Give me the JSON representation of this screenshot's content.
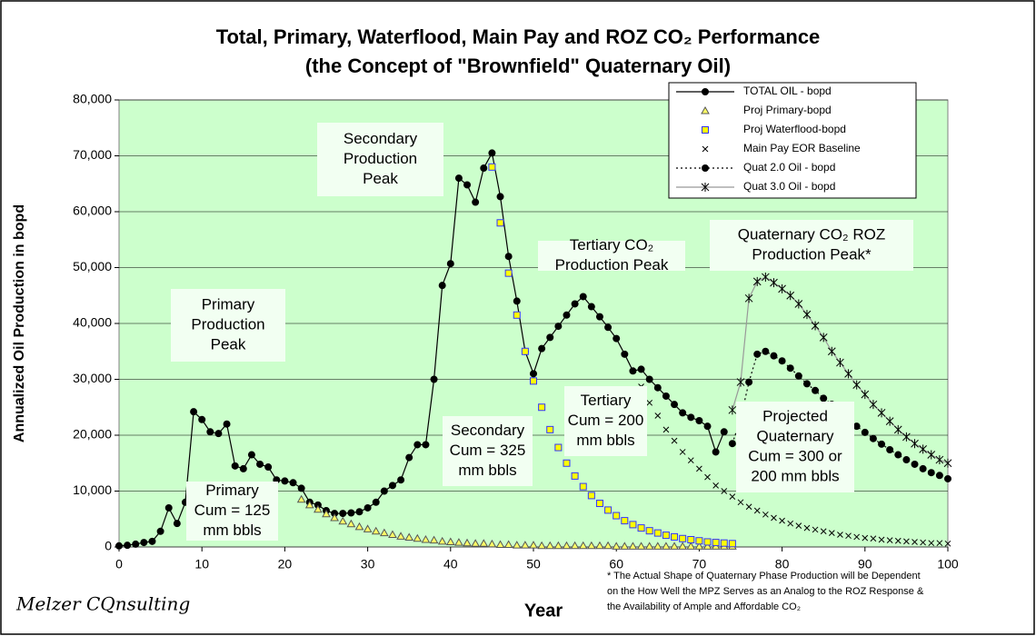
{
  "chart_data": {
    "type": "line",
    "title": "Total, Primary, Waterflood, Main Pay and ROZ CO₂ Performance",
    "subtitle": "(the Concept of \"Brownfield\" Quaternary Oil)",
    "x_label": "Year",
    "y_label": "Annualized Oil Production in bopd",
    "xlim": [
      0,
      100
    ],
    "ylim": [
      0,
      80000
    ],
    "xticks": [
      0,
      10,
      20,
      30,
      40,
      50,
      60,
      70,
      80,
      90,
      100
    ],
    "yticks": [
      0,
      {
        "value": 10000,
        "label": "10,000"
      },
      {
        "value": 20000,
        "label": "20,000"
      },
      {
        "value": 30000,
        "label": "30,000"
      },
      {
        "value": 40000,
        "label": "40,000"
      },
      {
        "value": 50000,
        "label": "50,000"
      },
      {
        "value": 60000,
        "label": "60,000"
      },
      {
        "value": 70000,
        "label": "70,000"
      },
      {
        "value": 80000,
        "label": "80,000"
      }
    ],
    "grid": true,
    "plot_background": "#ccffcc",
    "legend": "top-right",
    "series": [
      {
        "name": "TOTAL OIL - bopd",
        "color": "#000000",
        "marker": "circle",
        "marker_fill": "#000000",
        "line": "solid",
        "x": [
          0,
          1,
          2,
          3,
          4,
          5,
          6,
          7,
          8,
          9,
          10,
          11,
          12,
          13,
          14,
          15,
          16,
          17,
          18,
          19,
          20,
          21,
          22,
          23,
          24,
          25,
          26,
          27,
          28,
          29,
          30,
          31,
          32,
          33,
          34,
          35,
          36,
          37,
          38,
          39,
          40,
          41,
          42,
          43,
          44,
          45,
          46,
          47,
          48,
          49,
          50,
          51,
          52,
          53,
          54,
          55,
          56,
          57,
          58,
          59,
          60,
          61,
          62,
          63,
          64,
          65,
          66,
          67,
          68,
          69,
          70,
          71,
          72,
          73
        ],
        "values": [
          200,
          300,
          500,
          800,
          1000,
          2800,
          7000,
          4200,
          8000,
          24200,
          22800,
          20600,
          20300,
          22000,
          14500,
          14000,
          16500,
          14800,
          14300,
          12000,
          11800,
          11500,
          10500,
          8000,
          7500,
          6500,
          6000,
          6000,
          6100,
          6300,
          7000,
          8000,
          10000,
          11000,
          12000,
          16000,
          18300,
          18300,
          30000,
          46800,
          50700,
          66000,
          64800,
          61700,
          67800,
          70500,
          62700,
          52000,
          44000,
          35000,
          31000,
          35500,
          37500,
          39500,
          41500,
          43500,
          44800,
          43000,
          41200,
          39300,
          37300,
          34500,
          31500,
          31800,
          30000,
          28500,
          27000,
          25500,
          24000,
          23200,
          22600,
          21600,
          17000,
          20600
        ]
      },
      {
        "name": "Proj Primary-bopd",
        "color": "#000000",
        "marker": "triangle",
        "marker_fill": "#ffff66",
        "line": "none",
        "x": [
          22,
          23,
          24,
          25,
          26,
          27,
          28,
          29,
          30,
          31,
          32,
          33,
          34,
          35,
          36,
          37,
          38,
          39,
          40,
          41,
          42,
          43,
          44,
          45,
          46,
          47,
          48,
          49,
          50,
          51,
          52,
          53,
          54,
          55,
          56,
          57,
          58,
          59,
          60,
          61,
          62,
          63,
          64,
          65,
          66,
          67,
          68,
          69,
          70,
          71,
          72,
          73,
          74
        ],
        "values": [
          8500,
          7500,
          6700,
          5900,
          5200,
          4600,
          4100,
          3600,
          3200,
          2800,
          2500,
          2200,
          1900,
          1700,
          1500,
          1300,
          1200,
          1000,
          900,
          800,
          700,
          600,
          600,
          500,
          400,
          400,
          300,
          300,
          300,
          200,
          200,
          200,
          200,
          200,
          200,
          200,
          200,
          200,
          100,
          100,
          100,
          100,
          100,
          100,
          100,
          100,
          100,
          100,
          100,
          100,
          100,
          100,
          100
        ]
      },
      {
        "name": "Proj Waterflood-bopd",
        "color": "#3333ff",
        "marker": "square",
        "marker_fill": "#ffff00",
        "line": "none",
        "x": [
          45,
          46,
          47,
          48,
          49,
          50,
          51,
          52,
          53,
          54,
          55,
          56,
          57,
          58,
          59,
          60,
          61,
          62,
          63,
          64,
          65,
          66,
          67,
          68,
          69,
          70,
          71,
          72,
          73,
          74
        ],
        "values": [
          68000,
          58000,
          49000,
          41500,
          35000,
          29700,
          25000,
          21000,
          17800,
          15000,
          12700,
          10800,
          9200,
          7800,
          6600,
          5600,
          4700,
          4000,
          3400,
          2900,
          2500,
          2100,
          1800,
          1500,
          1300,
          1100,
          900,
          800,
          700,
          600
        ]
      },
      {
        "name": "Main Pay EOR Baseline",
        "color": "#000000",
        "marker": "x",
        "marker_fill": "none",
        "line": "none",
        "x": [
          63,
          64,
          65,
          66,
          67,
          68,
          69,
          70,
          71,
          72,
          73,
          74,
          75,
          76,
          77,
          78,
          79,
          80,
          81,
          82,
          83,
          84,
          85,
          86,
          87,
          88,
          89,
          90,
          91,
          92,
          93,
          94,
          95,
          96,
          97,
          98,
          99,
          100
        ],
        "values": [
          28700,
          25800,
          23500,
          21000,
          19000,
          17000,
          15500,
          14000,
          12500,
          11000,
          10000,
          9000,
          8000,
          7200,
          6500,
          5800,
          5200,
          4700,
          4200,
          3800,
          3400,
          3100,
          2800,
          2500,
          2200,
          2000,
          1800,
          1600,
          1500,
          1300,
          1200,
          1100,
          1000,
          900,
          800,
          700,
          700,
          600
        ]
      },
      {
        "name": "Quat 2.0 Oil - bopd",
        "color": "#000000",
        "marker": "circle",
        "marker_fill": "#000000",
        "line": "dotted",
        "x": [
          74,
          75,
          76,
          77,
          78,
          79,
          80,
          81,
          82,
          83,
          84,
          85,
          86,
          87,
          88,
          89,
          90,
          91,
          92,
          93,
          94,
          95,
          96,
          97,
          98,
          99,
          100
        ],
        "values": [
          18500,
          23000,
          29500,
          34500,
          35000,
          34200,
          33300,
          32000,
          30600,
          29200,
          28000,
          26600,
          25500,
          24000,
          22800,
          21600,
          20500,
          19400,
          18400,
          17400,
          16500,
          15600,
          14800,
          14000,
          13300,
          12800,
          12200
        ]
      },
      {
        "name": "Quat 3.0 Oil - bopd",
        "color": "#999999",
        "marker": "star",
        "marker_fill": "none",
        "line": "solid",
        "x": [
          74,
          75,
          76,
          77,
          78,
          79,
          80,
          81,
          82,
          83,
          84,
          85,
          86,
          87,
          88,
          89,
          90,
          91,
          92,
          93,
          94,
          95,
          96,
          97,
          98,
          99,
          100
        ],
        "values": [
          24500,
          29500,
          44500,
          47500,
          48300,
          47300,
          46200,
          45000,
          43500,
          41600,
          39600,
          37500,
          35000,
          33000,
          31000,
          29000,
          27300,
          25500,
          24000,
          22500,
          21000,
          19700,
          18500,
          17500,
          16500,
          15600,
          15000
        ]
      }
    ],
    "annotations": [
      {
        "lines": [
          "Primary",
          "Production",
          "Peak"
        ]
      },
      {
        "lines": [
          "Secondary",
          "Production",
          "Peak"
        ]
      },
      {
        "lines": [
          "Tertiary CO₂",
          "Production Peak"
        ]
      },
      {
        "lines": [
          "Quaternary CO₂ ROZ",
          "Production Peak*"
        ]
      },
      {
        "lines": [
          "Primary",
          "Cum = 125",
          "mm bbls"
        ]
      },
      {
        "lines": [
          "Secondary",
          "Cum = 325",
          "mm bbls"
        ]
      },
      {
        "lines": [
          "Tertiary",
          "Cum = 200",
          "mm bbls"
        ]
      },
      {
        "lines": [
          "Projected",
          "Quaternary",
          "Cum = 300 or",
          "200 mm bbls"
        ]
      }
    ],
    "footnote": [
      "* The Actual Shape of Quaternary Phase Production will be Dependent",
      "on the How Well the MPZ Serves as an Analog to the ROZ Response &",
      "the Availability of Ample and Affordable CO₂"
    ],
    "logo": "Melzer CQnsulting"
  }
}
